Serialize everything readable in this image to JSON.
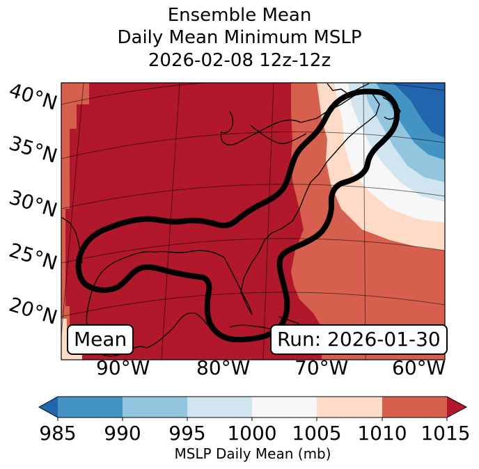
{
  "title": {
    "line1": "Ensemble Mean",
    "line2": "Daily Mean Minimum MSLP",
    "line3": "2026-02-08 12z-12z"
  },
  "map": {
    "lat_labels": [
      "40°N",
      "35°N",
      "30°N",
      "25°N",
      "20°N"
    ],
    "lon_labels": [
      "90°W",
      "80°W",
      "70°W",
      "60°W"
    ],
    "left_box": "Mean",
    "right_box": "Run: 2026-01-30",
    "contour_color": "#000000"
  },
  "colorbar": {
    "ticks": [
      "985",
      "990",
      "995",
      "1000",
      "1005",
      "1010",
      "1015"
    ],
    "label": "MSLP Daily Mean (mb)",
    "colors": [
      "#2166ac",
      "#4393c3",
      "#92c5de",
      "#d1e5f0",
      "#f7f7f7",
      "#fddbc7",
      "#d6604d",
      "#b2182b"
    ]
  }
}
